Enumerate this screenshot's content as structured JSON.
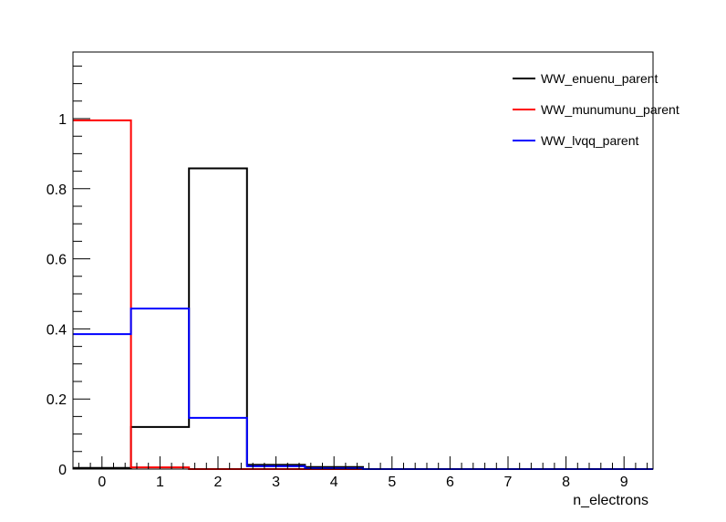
{
  "chart_data": {
    "type": "step-histogram",
    "xlabel": "n_electrons",
    "ylabel": "",
    "xlim": [
      -0.5,
      9.5
    ],
    "ylim": [
      0,
      1.19
    ],
    "x_ticks": [
      "0",
      "1",
      "2",
      "3",
      "4",
      "5",
      "6",
      "7",
      "8",
      "9"
    ],
    "y_ticks": [
      "0",
      "0.2",
      "0.4",
      "0.6",
      "0.8",
      "1"
    ],
    "bins": [
      0,
      1,
      2,
      3,
      4,
      5,
      6,
      7,
      8,
      9
    ],
    "legend_placement": "top-right",
    "series": [
      {
        "name": "WW_enuenu_parent",
        "color": "#000000",
        "values": [
          0.003,
          0.12,
          0.858,
          0.012,
          0.006,
          0,
          0,
          0,
          0,
          0
        ]
      },
      {
        "name": "WW_munumunu_parent",
        "color": "#ff0000",
        "values": [
          0.995,
          0.005,
          0,
          0,
          0,
          0,
          0,
          0,
          0,
          0
        ]
      },
      {
        "name": "WW_lvqq_parent",
        "color": "#0000ff",
        "values": [
          0.385,
          0.458,
          0.146,
          0.008,
          0.002,
          0,
          0,
          0,
          0,
          0
        ]
      }
    ]
  }
}
